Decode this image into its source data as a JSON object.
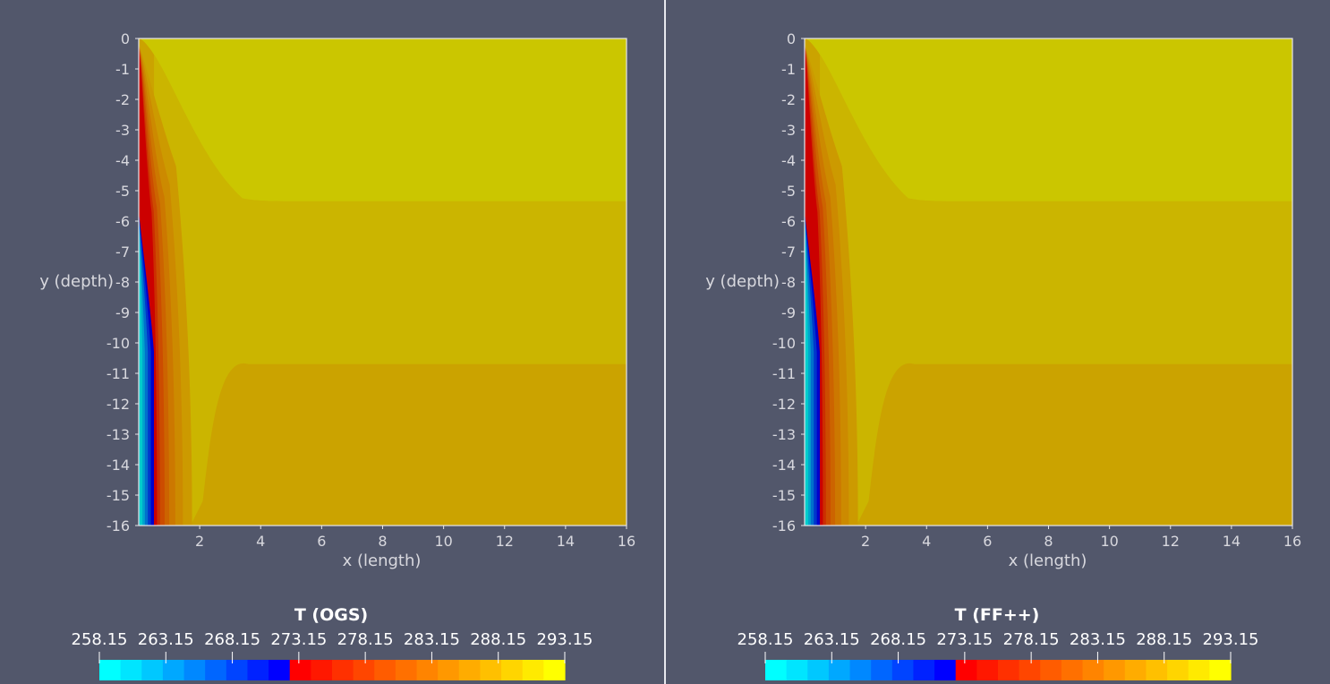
{
  "theme": {
    "background": "#52576b",
    "axis_color": "#e6e6ea",
    "text_color": "#ffffff"
  },
  "chart_data": [
    {
      "type": "heatmap",
      "title": "",
      "xlabel": "x (length)",
      "ylabel": "y (depth)",
      "xlim": [
        0,
        16
      ],
      "ylim": [
        -16,
        0
      ],
      "xticks": [
        "2",
        "4",
        "6",
        "8",
        "10",
        "12",
        "14",
        "16"
      ],
      "yticks": [
        "0",
        "-1",
        "-2",
        "-3",
        "-4",
        "-5",
        "-6",
        "-7",
        "-8",
        "-9",
        "-10",
        "-11",
        "-12",
        "-13",
        "-14",
        "-15",
        "-16"
      ],
      "colorbar": {
        "title": "T (OGS)",
        "range": [
          258.15,
          293.15
        ],
        "ticks": [
          "258.15",
          "263.15",
          "268.15",
          "273.15",
          "278.15",
          "283.15",
          "288.15",
          "293.15"
        ],
        "colors": [
          "#00ffff",
          "#00e5ff",
          "#00c8ff",
          "#00a8ff",
          "#0088ff",
          "#0066ff",
          "#0044ff",
          "#0022ff",
          "#0000ff",
          "#ff0000",
          "#ff1800",
          "#ff3000",
          "#ff4600",
          "#ff5c00",
          "#ff7000",
          "#ff8400",
          "#ff9800",
          "#ffac00",
          "#ffc000",
          "#ffd500",
          "#ffea00",
          "#ffff00"
        ]
      },
      "field": {
        "zone_colors": {
          "upper": "#cbc600",
          "middle": "#cbb500",
          "lower": "#cba300"
        },
        "zone_boundaries_y": [
          -5.35,
          -10.7
        ],
        "cold_boundary_onset_y": -5.7
      }
    },
    {
      "type": "heatmap",
      "title": "",
      "xlabel": "x (length)",
      "ylabel": "y (depth)",
      "xlim": [
        0,
        16
      ],
      "ylim": [
        -16,
        0
      ],
      "xticks": [
        "2",
        "4",
        "6",
        "8",
        "10",
        "12",
        "14",
        "16"
      ],
      "yticks": [
        "0",
        "-1",
        "-2",
        "-3",
        "-4",
        "-5",
        "-6",
        "-7",
        "-8",
        "-9",
        "-10",
        "-11",
        "-12",
        "-13",
        "-14",
        "-15",
        "-16"
      ],
      "colorbar": {
        "title": "T (FF++)",
        "range": [
          258.15,
          293.15
        ],
        "ticks": [
          "258.15",
          "263.15",
          "268.15",
          "273.15",
          "278.15",
          "283.15",
          "288.15",
          "293.15"
        ],
        "colors": [
          "#00ffff",
          "#00e5ff",
          "#00c8ff",
          "#00a8ff",
          "#0088ff",
          "#0066ff",
          "#0044ff",
          "#0022ff",
          "#0000ff",
          "#ff0000",
          "#ff1800",
          "#ff3000",
          "#ff4600",
          "#ff5c00",
          "#ff7000",
          "#ff8400",
          "#ff9800",
          "#ffac00",
          "#ffc000",
          "#ffd500",
          "#ffea00",
          "#ffff00"
        ]
      },
      "field": {
        "zone_colors": {
          "upper": "#cbc600",
          "middle": "#cbb500",
          "lower": "#cba300"
        },
        "zone_boundaries_y": [
          -5.35,
          -10.7
        ],
        "cold_boundary_onset_y": -5.7
      }
    }
  ]
}
